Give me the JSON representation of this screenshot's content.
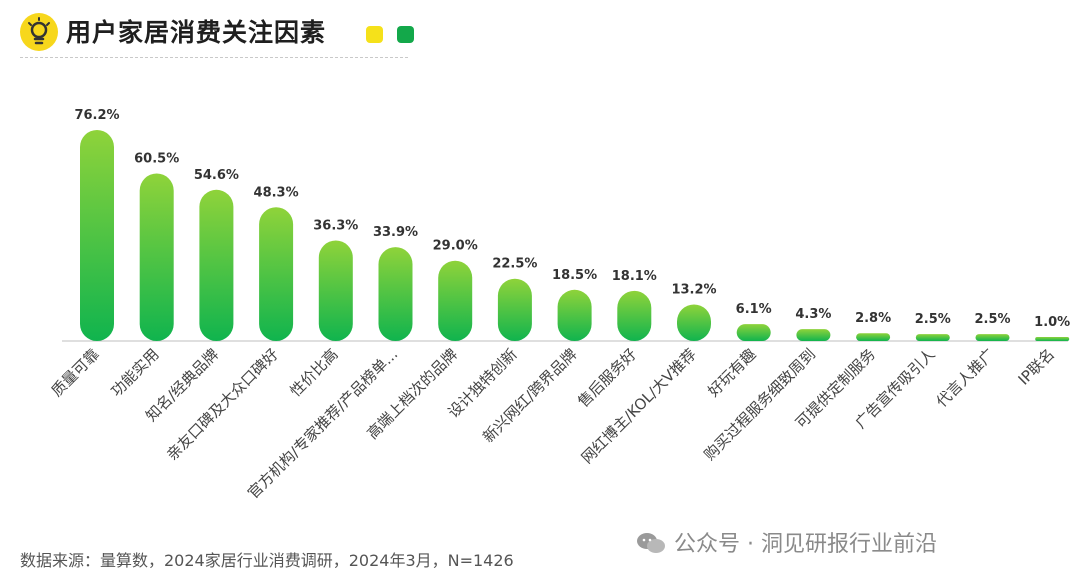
{
  "header": {
    "title": "用户家居消费关注因素"
  },
  "colors": {
    "bar_top": "#8fd33a",
    "bar_bottom": "#10b44e",
    "legend_yellow": "#f5e11a",
    "legend_green": "#13a84a"
  },
  "chart_data": {
    "type": "bar",
    "title": "用户家居消费关注因素",
    "categories": [
      "质量可靠",
      "功能实用",
      "知名/经典品牌",
      "亲友口碑及大众口碑好",
      "性价比高",
      "官方机构/专家推荐/产品榜单...",
      "高端上档次的品牌",
      "设计独特创新",
      "新兴网红/跨界品牌",
      "售后服务好",
      "网红博主/KOL/大V推荐",
      "好玩有趣",
      "购买过程服务细致周到",
      "可提供定制服务",
      "广告宣传吸引人",
      "代言人推广",
      "IP联名"
    ],
    "values": [
      76.2,
      60.5,
      54.6,
      48.3,
      36.3,
      33.9,
      29.0,
      22.5,
      18.5,
      18.1,
      13.2,
      6.1,
      4.3,
      2.8,
      2.5,
      2.5,
      1.0
    ],
    "value_labels": [
      "76.2%",
      "60.5%",
      "54.6%",
      "48.3%",
      "36.3%",
      "33.9%",
      "29.0%",
      "22.5%",
      "18.5%",
      "18.1%",
      "13.2%",
      "6.1%",
      "4.3%",
      "2.8%",
      "2.5%",
      "2.5%",
      "1.0%"
    ],
    "ylim": [
      0,
      76.2
    ],
    "xlabel": "",
    "ylabel": "",
    "grid": false
  },
  "footer": {
    "source": "数据来源：量算数，2024家居行业消费调研，2024年3月，N=1426"
  },
  "watermark": {
    "text": "公众号 · 洞见研报行业前沿"
  }
}
